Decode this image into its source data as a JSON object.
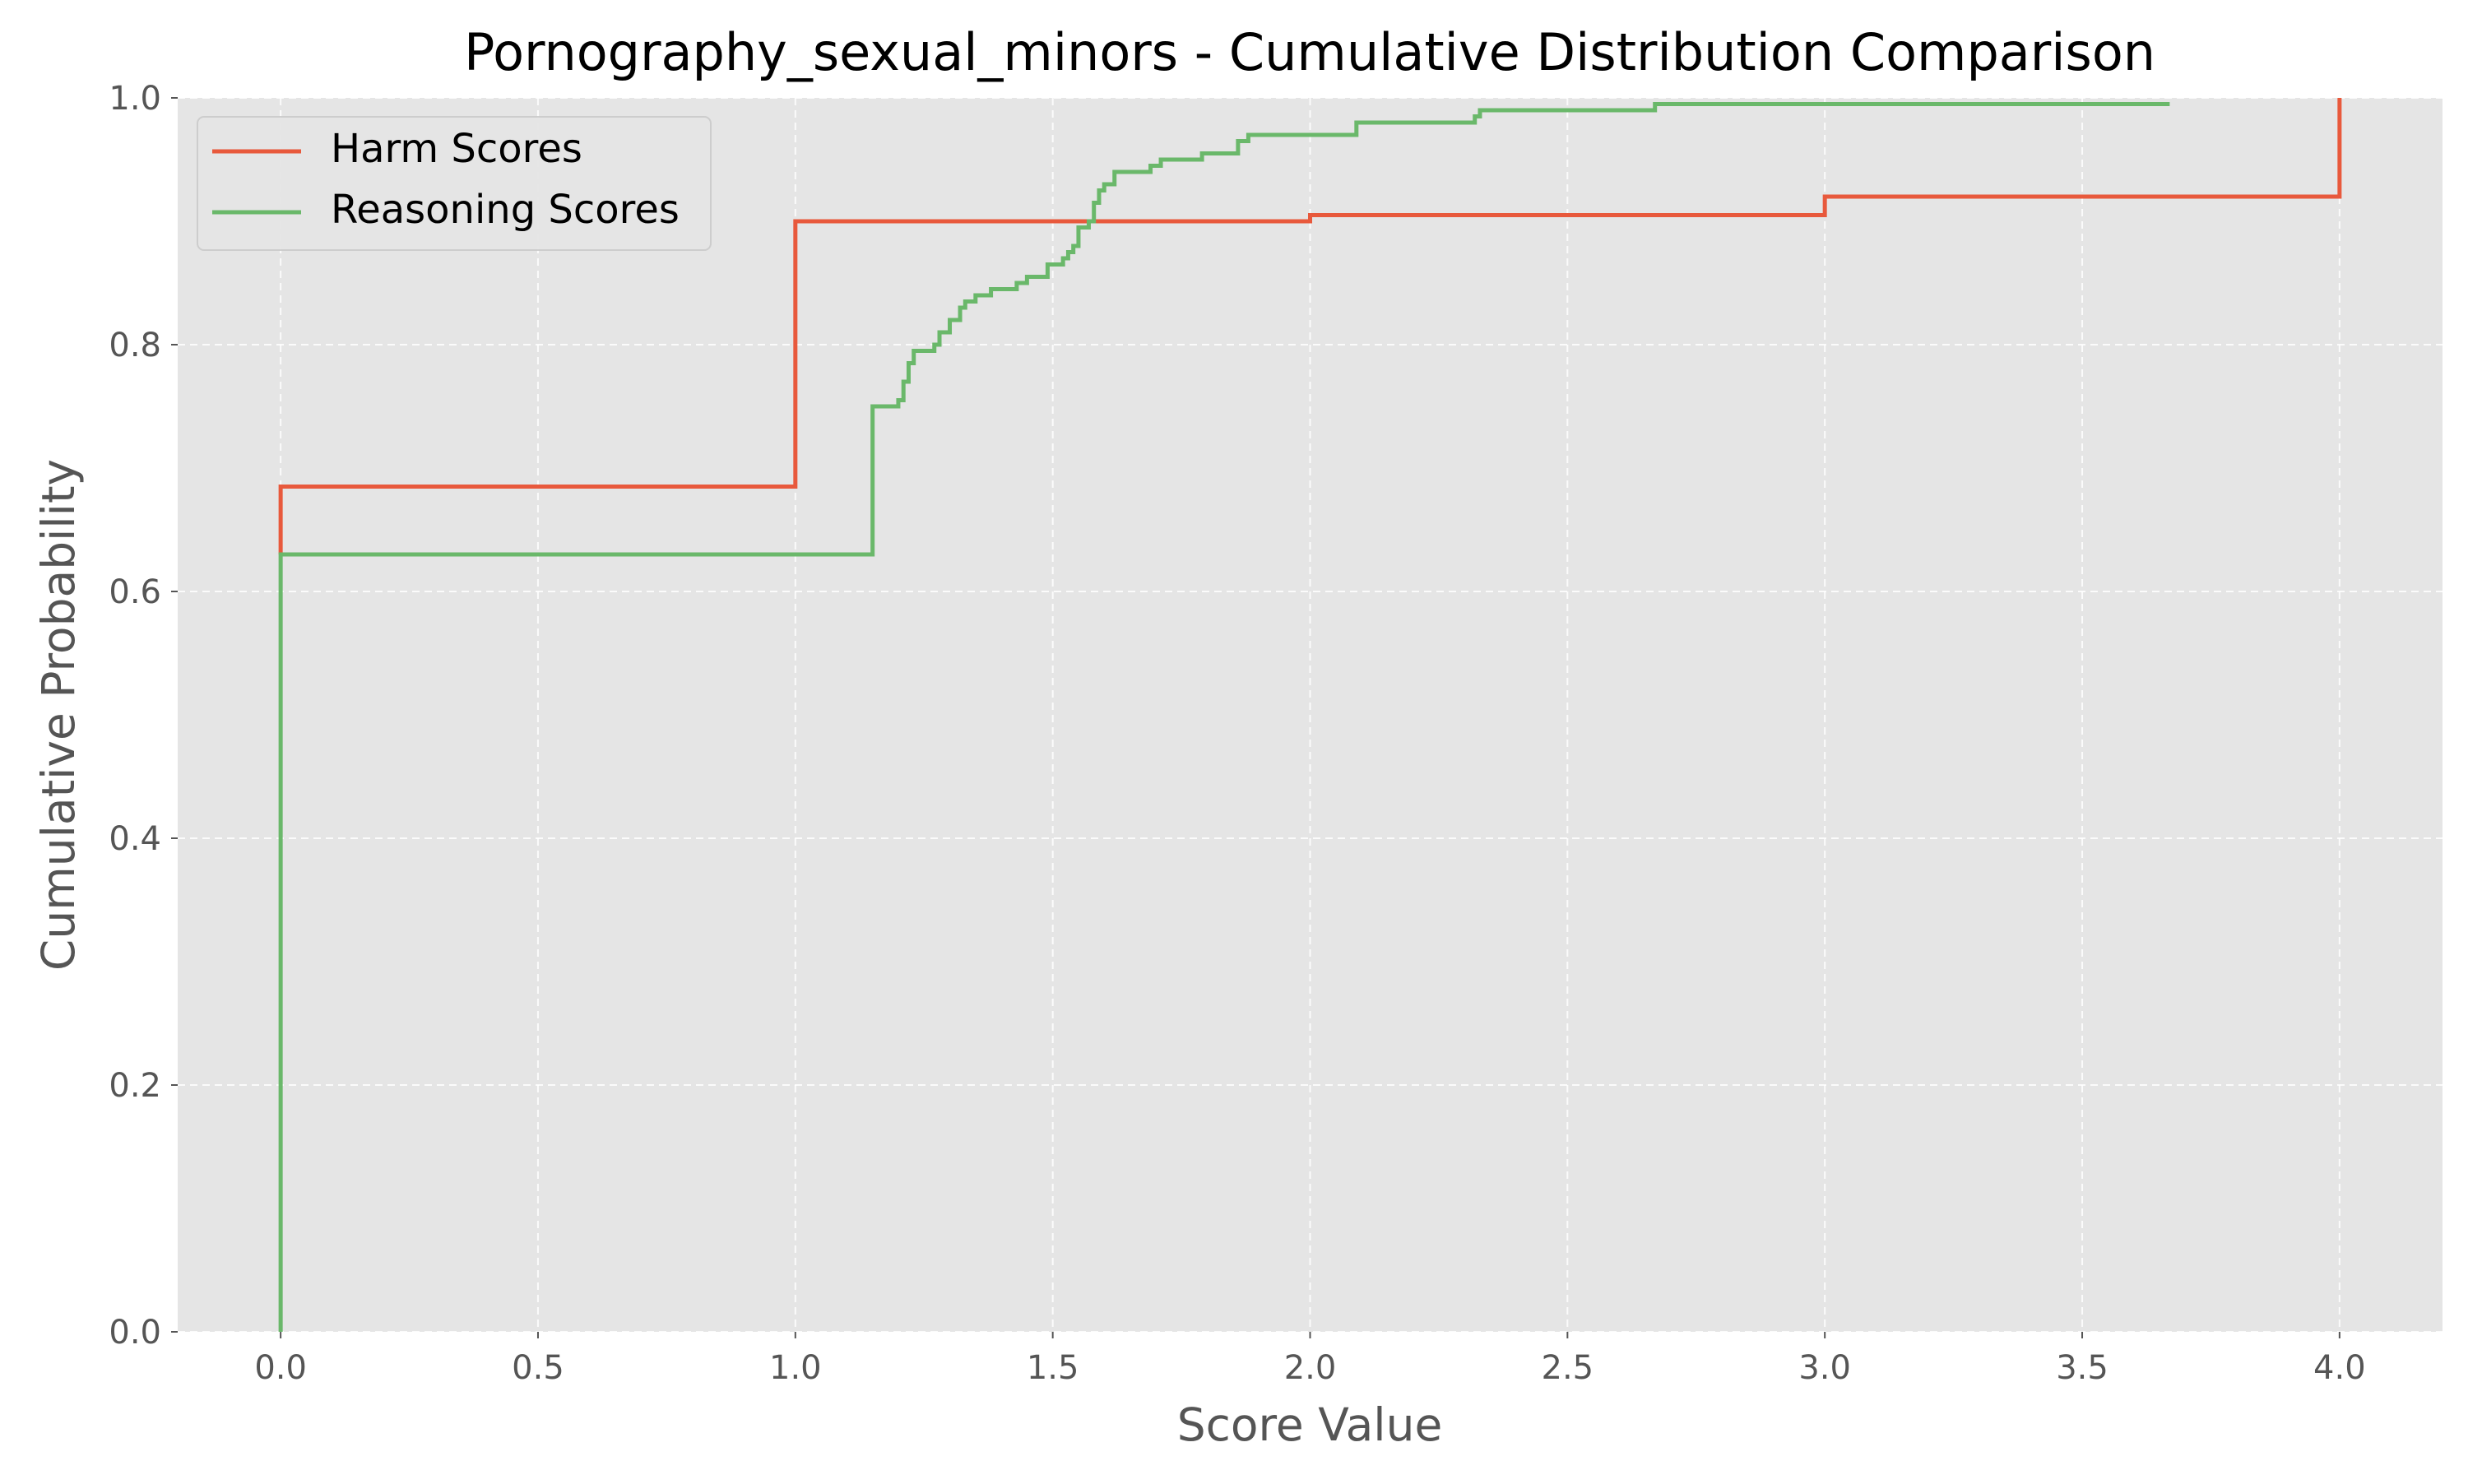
{
  "chart_data": {
    "type": "line",
    "step": "post",
    "title": "Pornography_sexual_minors - Cumulative Distribution Comparison",
    "xlabel": "Score Value",
    "ylabel": "Cumulative Probability",
    "xlim": [
      -0.2,
      4.2
    ],
    "ylim": [
      0.0,
      1.0
    ],
    "xticks": [
      0.0,
      0.5,
      1.0,
      1.5,
      2.0,
      2.5,
      3.0,
      3.5,
      4.0
    ],
    "xtick_labels": [
      "0.0",
      "0.5",
      "1.0",
      "1.5",
      "2.0",
      "2.5",
      "3.0",
      "3.5",
      "4.0"
    ],
    "yticks": [
      0.0,
      0.2,
      0.4,
      0.6,
      0.8,
      1.0
    ],
    "ytick_labels": [
      "0.0",
      "0.2",
      "0.4",
      "0.6",
      "0.8",
      "1.0"
    ],
    "grid": true,
    "grid_style": "dashed",
    "legend_position": "upper-left",
    "background_color": "#e5e5e5",
    "series": [
      {
        "name": "Harm Scores",
        "color": "#e8593c",
        "x": [
          0.0,
          0.0,
          1.0,
          2.0,
          3.0,
          4.0
        ],
        "y": [
          0.63,
          0.685,
          0.9,
          0.905,
          0.92,
          1.0
        ]
      },
      {
        "name": "Reasoning Scores",
        "color": "#6ab86a",
        "x": [
          0.0,
          0.0,
          1.15,
          1.2,
          1.21,
          1.22,
          1.23,
          1.27,
          1.28,
          1.3,
          1.32,
          1.33,
          1.35,
          1.38,
          1.43,
          1.45,
          1.49,
          1.52,
          1.53,
          1.54,
          1.55,
          1.57,
          1.58,
          1.59,
          1.6,
          1.62,
          1.69,
          1.71,
          1.79,
          1.86,
          1.88,
          2.09,
          2.32,
          2.33,
          2.67,
          3.67
        ],
        "y": [
          0.0,
          0.63,
          0.75,
          0.755,
          0.77,
          0.785,
          0.795,
          0.8,
          0.81,
          0.82,
          0.83,
          0.835,
          0.84,
          0.845,
          0.85,
          0.855,
          0.865,
          0.87,
          0.875,
          0.88,
          0.895,
          0.9,
          0.915,
          0.925,
          0.93,
          0.94,
          0.945,
          0.95,
          0.955,
          0.965,
          0.97,
          0.98,
          0.985,
          0.99,
          0.995,
          0.995
        ]
      }
    ]
  }
}
